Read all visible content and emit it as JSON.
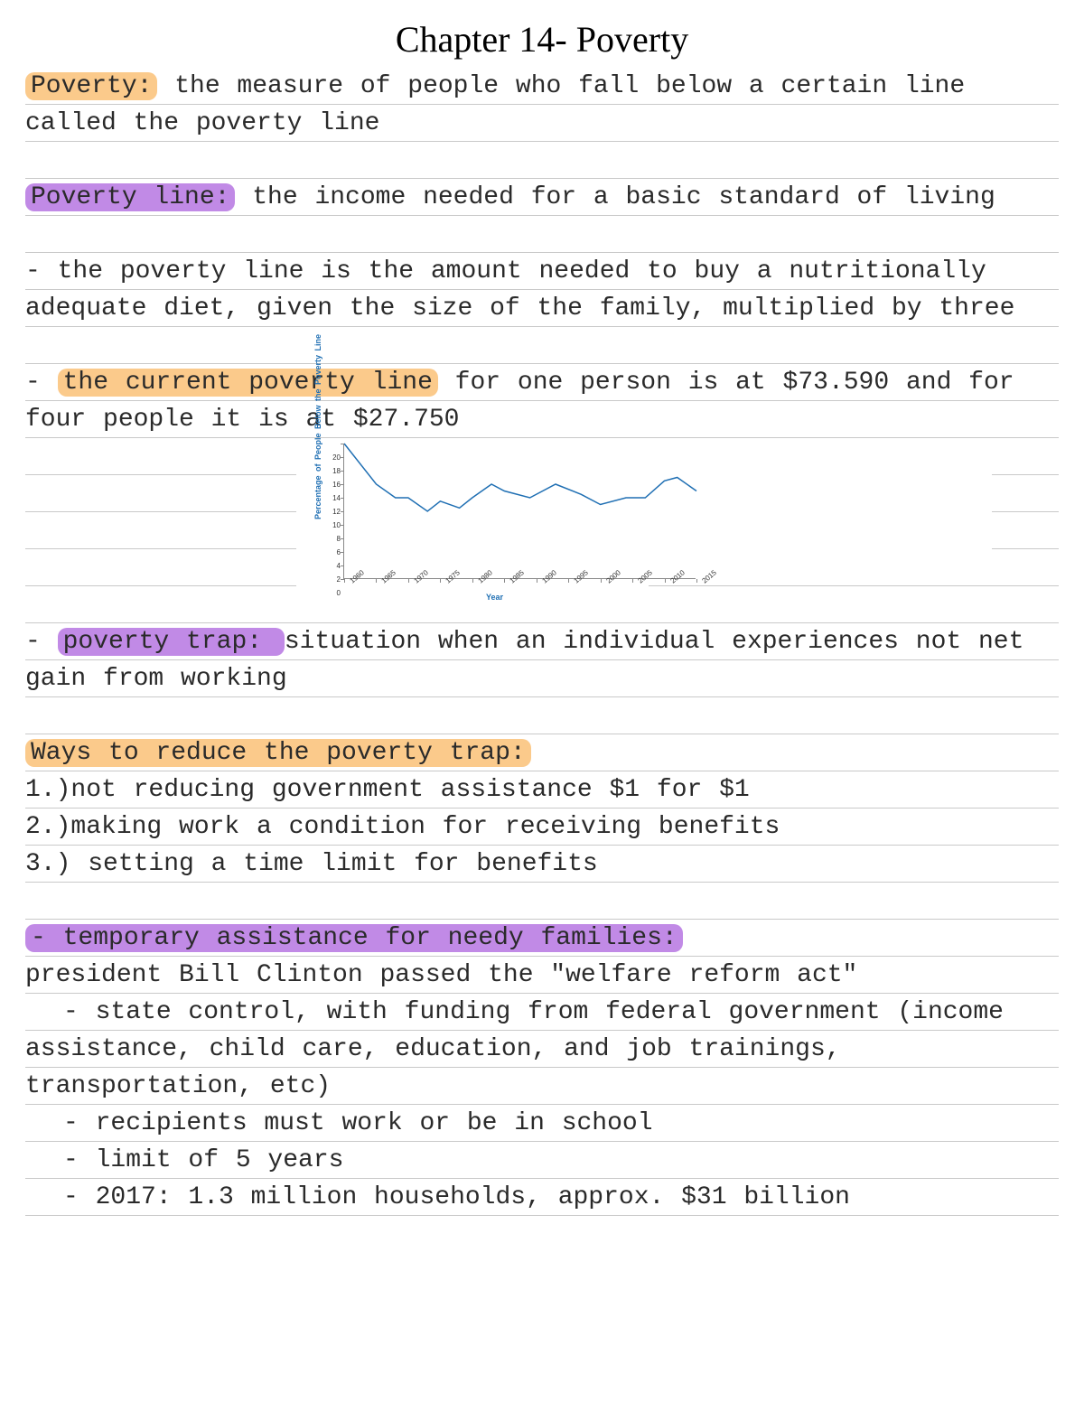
{
  "title": "Chapter 14- Poverty",
  "highlights": {
    "poverty_label": "Poverty:",
    "poverty_def": " the measure of people who fall below a certain line called the poverty line",
    "povline_label": "Poverty line:",
    "povline_def": " the income needed for a basic standard of living",
    "povline_expl": "- the poverty line is the amount needed to buy a nutritionally adequate diet, given the size of the family, multiplied by three",
    "current_pre": "- ",
    "current_label": "the current poverty line",
    "current_post": " for one person is at $73.590 and for four people it is at $27.750",
    "trap_pre": "- ",
    "trap_label": "poverty trap: ",
    "trap_def": "situation when an individual experiences not net gain from working",
    "ways_label": "Ways to reduce the poverty trap:",
    "way1": "1.)not reducing government assistance $1 for $1",
    "way2": "2.)making work a condition for receiving benefits",
    "way3": "3.) setting a time limit for benefits",
    "tanf_label": "- temporary assistance for needy families: ",
    "tanf_def": "president Bill Clinton passed the \"welfare reform act\"",
    "tanf_b1": "- state control, with funding from federal government (income assistance, child care, education, and job trainings, transportation, etc)",
    "tanf_b2": "- recipients must work or be in school",
    "tanf_b3": "- limit of 5 years",
    "tanf_b4": "- 2017: 1.3 million households, approx. $31 billion"
  },
  "chart": {
    "type": "line",
    "ylabel": "Percentage of People Below the Poverty Line",
    "xlabel": "Year",
    "ylim": [
      0,
      20
    ],
    "ytick_step": 2,
    "x_ticks": [
      1960,
      1965,
      1970,
      1975,
      1980,
      1985,
      1990,
      1995,
      2000,
      2005,
      2010,
      2015
    ],
    "x_values": [
      1960,
      1965,
      1968,
      1970,
      1973,
      1975,
      1978,
      1980,
      1983,
      1985,
      1989,
      1993,
      1997,
      2000,
      2004,
      2007,
      2010,
      2012,
      2015
    ],
    "y_values": [
      20,
      14,
      12,
      12,
      10,
      11.5,
      10.5,
      12,
      14,
      13,
      12,
      14,
      12.5,
      11,
      12,
      12,
      14.5,
      15,
      13
    ],
    "line_color": "#1f6fb3",
    "axis_color": "#888888",
    "tick_color": "#333333",
    "background_color": "#ffffff"
  },
  "colors": {
    "highlight_orange": "#fbca8b",
    "highlight_purple": "#c18ae6",
    "rule_color": "#c9c9c9",
    "text_color": "#2a2a2a"
  }
}
